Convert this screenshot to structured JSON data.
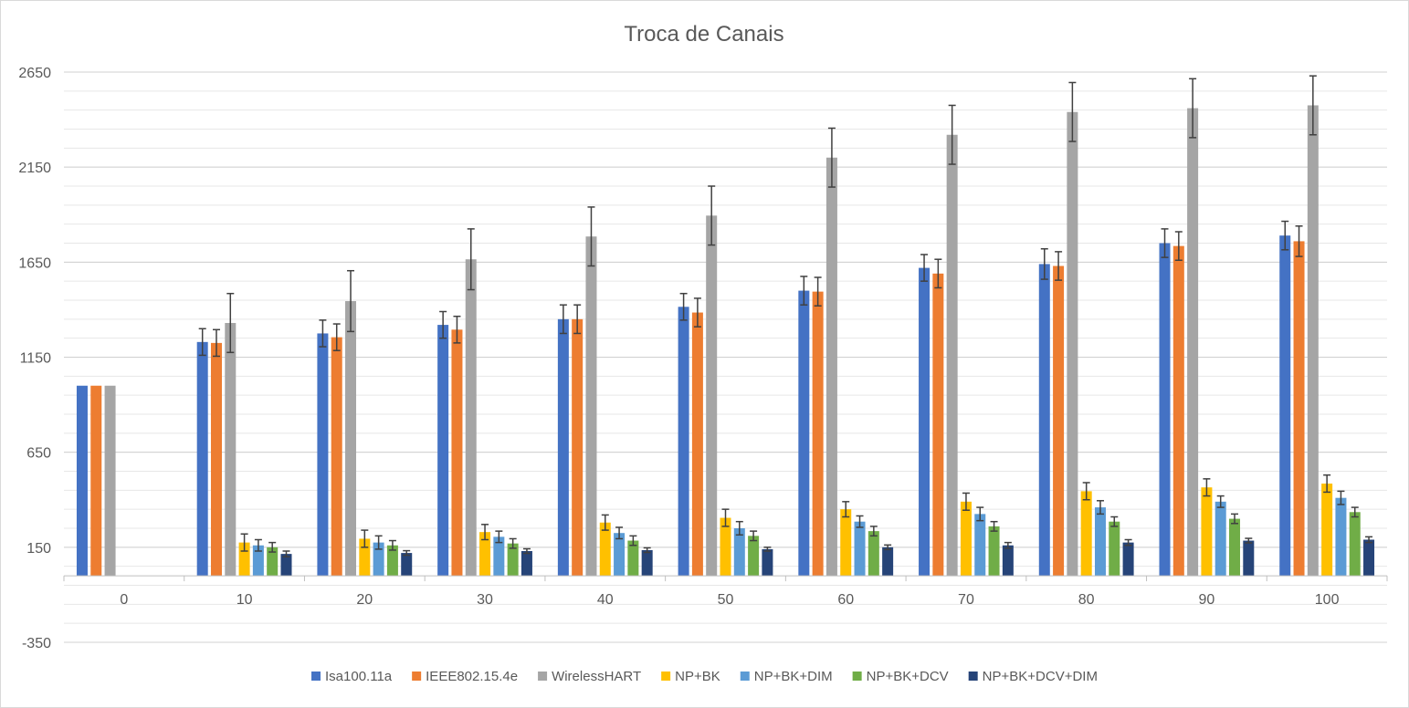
{
  "chart_data": {
    "type": "bar",
    "title": "Troca de Canais",
    "xlabel": "",
    "ylabel": "",
    "categories": [
      "0",
      "10",
      "20",
      "30",
      "40",
      "50",
      "60",
      "70",
      "80",
      "90",
      "100"
    ],
    "ylim": [
      -350,
      2650
    ],
    "yticks": [
      -350,
      150,
      650,
      1150,
      1650,
      2150,
      2650
    ],
    "grid": true,
    "legend_position": "bottom",
    "error_bars": true,
    "series": [
      {
        "name": "Isa100.11a",
        "color": "#4472C4",
        "values": [
          1000,
          1230,
          1275,
          1320,
          1350,
          1415,
          1500,
          1620,
          1640,
          1750,
          1790
        ],
        "errors": [
          0,
          70,
          70,
          70,
          75,
          70,
          75,
          70,
          80,
          75,
          75
        ]
      },
      {
        "name": "IEEE802.15.4e",
        "color": "#ED7D31",
        "values": [
          1000,
          1225,
          1255,
          1295,
          1350,
          1385,
          1495,
          1590,
          1630,
          1735,
          1760
        ],
        "errors": [
          0,
          70,
          70,
          70,
          75,
          75,
          75,
          75,
          75,
          75,
          80
        ]
      },
      {
        "name": "WirelessHART",
        "color": "#A5A5A5",
        "values": [
          1000,
          1330,
          1445,
          1665,
          1785,
          1895,
          2200,
          2320,
          2440,
          2460,
          2475
        ],
        "errors": [
          0,
          155,
          160,
          160,
          155,
          155,
          155,
          155,
          155,
          155,
          155
        ]
      },
      {
        "name": "NP+BK",
        "color": "#FFC000",
        "values": [
          0,
          175,
          195,
          230,
          280,
          305,
          350,
          390,
          445,
          465,
          485
        ],
        "errors": [
          0,
          45,
          45,
          40,
          40,
          45,
          40,
          45,
          45,
          45,
          45
        ]
      },
      {
        "name": "NP+BK+DIM",
        "color": "#5B9BD5",
        "values": [
          0,
          160,
          175,
          205,
          225,
          250,
          285,
          325,
          360,
          390,
          410
        ],
        "errors": [
          0,
          30,
          35,
          30,
          30,
          35,
          30,
          35,
          35,
          30,
          35
        ]
      },
      {
        "name": "NP+BK+DCV",
        "color": "#70AD47",
        "values": [
          0,
          150,
          160,
          170,
          185,
          210,
          235,
          260,
          285,
          300,
          335
        ],
        "errors": [
          0,
          25,
          25,
          25,
          25,
          25,
          25,
          25,
          25,
          25,
          25
        ]
      },
      {
        "name": "NP+BK+DCV+DIM",
        "color": "#264478",
        "values": [
          0,
          115,
          120,
          130,
          135,
          140,
          150,
          160,
          175,
          185,
          190
        ],
        "errors": [
          0,
          15,
          12,
          12,
          12,
          10,
          12,
          15,
          15,
          12,
          15
        ]
      }
    ]
  }
}
